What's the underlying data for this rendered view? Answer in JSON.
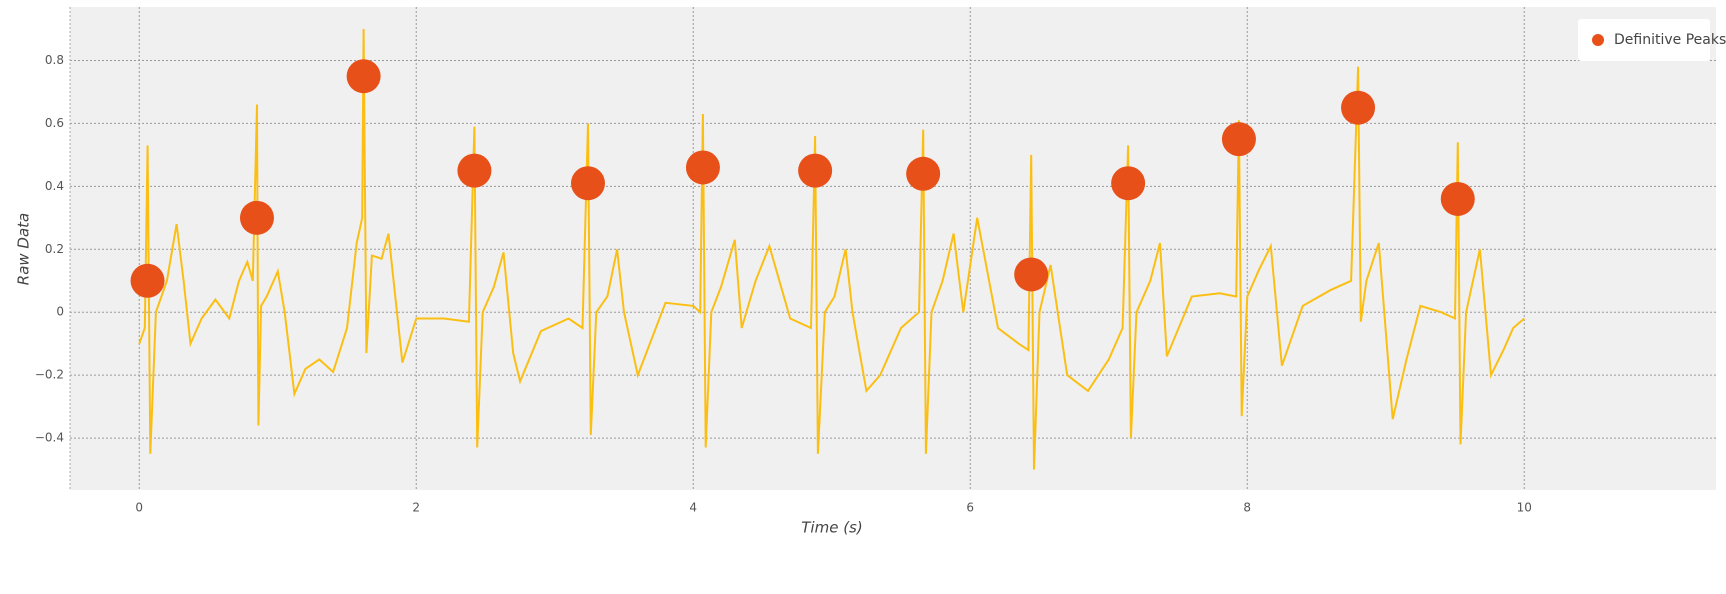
{
  "chart_data": {
    "type": "line",
    "xlabel": "Time (s)",
    "ylabel": "Raw Data",
    "xlim": [
      -0.5,
      10.5
    ],
    "ylim": [
      -0.565,
      0.97
    ],
    "xticks": [
      0,
      2,
      4,
      6,
      8,
      10
    ],
    "yticks": [
      {
        "value": -0.4,
        "label": "−0.4"
      },
      {
        "value": -0.2,
        "label": "−0.2"
      },
      0,
      0.2,
      0.4,
      0.6,
      0.8
    ],
    "grid": true,
    "legend": "upper right",
    "series": [
      {
        "type": "line",
        "color": "#fbbf14",
        "x": [
          0,
          0.04,
          0.06,
          0.08,
          0.12,
          0.2,
          0.27,
          0.32,
          0.37,
          0.45,
          0.55,
          0.65,
          0.72,
          0.78,
          0.82,
          0.85,
          0.86,
          0.88,
          0.92,
          1.0,
          1.05,
          1.12,
          1.2,
          1.3,
          1.4,
          1.5,
          1.57,
          1.61,
          1.62,
          1.64,
          1.68,
          1.75,
          1.8,
          1.9,
          2.0,
          2.2,
          2.38,
          2.42,
          2.44,
          2.48,
          2.56,
          2.63,
          2.7,
          2.75,
          2.9,
          3.1,
          3.2,
          3.24,
          3.26,
          3.3,
          3.38,
          3.45,
          3.5,
          3.6,
          3.8,
          4.0,
          4.05,
          4.07,
          4.09,
          4.13,
          4.2,
          4.3,
          4.35,
          4.45,
          4.55,
          4.7,
          4.85,
          4.88,
          4.9,
          4.95,
          5.02,
          5.1,
          5.15,
          5.25,
          5.35,
          5.5,
          5.63,
          5.66,
          5.68,
          5.72,
          5.8,
          5.88,
          5.95,
          6.05,
          6.2,
          6.35,
          6.42,
          6.44,
          6.46,
          6.5,
          6.58,
          6.7,
          6.85,
          7.0,
          7.1,
          7.14,
          7.16,
          7.2,
          7.3,
          7.37,
          7.42,
          7.6,
          7.8,
          7.92,
          7.94,
          7.96,
          8.0,
          8.08,
          8.17,
          8.25,
          8.4,
          8.6,
          8.75,
          8.8,
          8.82,
          8.86,
          8.95,
          9.05,
          9.15,
          9.25,
          9.4,
          9.5,
          9.52,
          9.54,
          9.58,
          9.68,
          9.76,
          9.85,
          9.92,
          10.0
        ],
        "values": [
          -0.1,
          -0.05,
          0.53,
          -0.45,
          0.0,
          0.1,
          0.28,
          0.1,
          -0.1,
          -0.02,
          0.04,
          -0.02,
          0.1,
          0.16,
          0.1,
          0.66,
          -0.36,
          0.02,
          0.05,
          0.13,
          0.0,
          -0.26,
          -0.18,
          -0.15,
          -0.19,
          -0.05,
          0.22,
          0.3,
          0.9,
          -0.13,
          0.18,
          0.17,
          0.25,
          -0.16,
          -0.02,
          -0.02,
          -0.03,
          0.59,
          -0.43,
          0.0,
          0.08,
          0.19,
          -0.13,
          -0.22,
          -0.06,
          -0.02,
          -0.05,
          0.6,
          -0.39,
          0.0,
          0.05,
          0.2,
          0.0,
          -0.2,
          0.03,
          0.02,
          0.0,
          0.63,
          -0.43,
          0.0,
          0.08,
          0.23,
          -0.05,
          0.1,
          0.21,
          -0.02,
          -0.05,
          0.56,
          -0.45,
          0.0,
          0.05,
          0.2,
          0.0,
          -0.25,
          -0.2,
          -0.05,
          0.0,
          0.58,
          -0.45,
          0.0,
          0.1,
          0.25,
          0.0,
          0.3,
          -0.05,
          -0.1,
          -0.12,
          0.5,
          -0.5,
          0.0,
          0.15,
          -0.2,
          -0.25,
          -0.15,
          -0.05,
          0.53,
          -0.4,
          0.0,
          0.1,
          0.22,
          -0.14,
          0.05,
          0.06,
          0.05,
          0.61,
          -0.33,
          0.05,
          0.13,
          0.21,
          -0.17,
          0.02,
          0.07,
          0.1,
          0.78,
          -0.03,
          0.1,
          0.22,
          -0.34,
          -0.15,
          0.02,
          0.0,
          -0.02,
          0.54,
          -0.42,
          0.0,
          0.2,
          -0.2,
          -0.12,
          -0.05,
          -0.02
        ]
      },
      {
        "type": "scatter",
        "name": "Definitive Peaks",
        "color": "#e8501a",
        "x": [
          0.06,
          0.85,
          1.62,
          2.42,
          3.24,
          4.07,
          4.88,
          5.66,
          6.44,
          7.14,
          7.94,
          8.8,
          9.52
        ],
        "values": [
          0.1,
          0.3,
          0.75,
          0.45,
          0.41,
          0.46,
          0.45,
          0.44,
          0.12,
          0.41,
          0.55,
          0.65,
          0.36
        ]
      }
    ]
  }
}
